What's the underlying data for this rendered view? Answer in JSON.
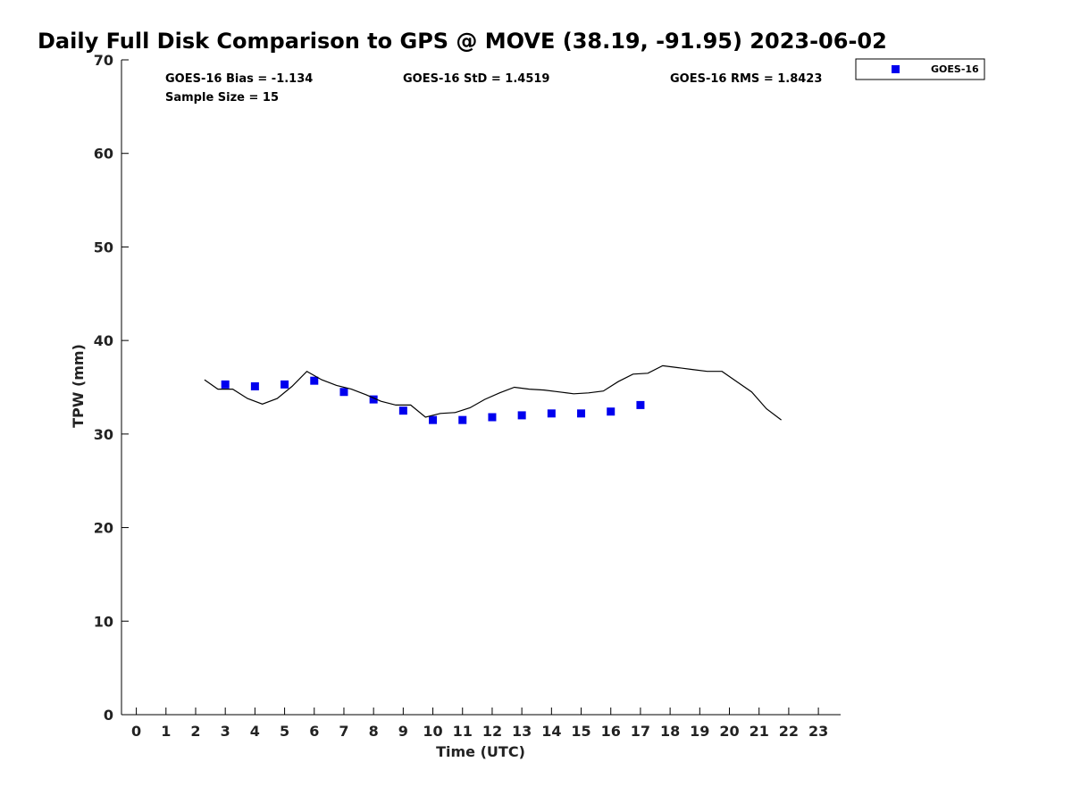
{
  "chart_data": {
    "type": "scatter",
    "title": "Daily Full Disk Comparison to GPS @ MOVE (38.19, -91.95) 2023-06-02",
    "xlabel": "Time (UTC)",
    "ylabel": "TPW (mm)",
    "xlim": [
      -0.5,
      23.75
    ],
    "ylim": [
      0,
      70
    ],
    "x_ticks": [
      "0",
      "1",
      "2",
      "3",
      "4",
      "5",
      "6",
      "7",
      "8",
      "9",
      "10",
      "11",
      "12",
      "13",
      "14",
      "15",
      "16",
      "17",
      "18",
      "19",
      "20",
      "21",
      "22",
      "23"
    ],
    "y_ticks": [
      "0",
      "10",
      "20",
      "30",
      "40",
      "50",
      "60",
      "70"
    ],
    "grid": false,
    "legend_position": "top-right",
    "stats": {
      "bias": "GOES-16 Bias = -1.134",
      "std": "GOES-16 StD = 1.4519",
      "rms": "GOES-16 RMS = 1.8423",
      "sample_size": "Sample Size = 15"
    },
    "series": [
      {
        "name": "GOES-16",
        "kind": "scatter",
        "color": "#0000ee",
        "marker": "square",
        "x": [
          3,
          4,
          5,
          6,
          7,
          8,
          9,
          10,
          11,
          12,
          13,
          14,
          15,
          16,
          17
        ],
        "y": [
          35.3,
          35.1,
          35.3,
          35.7,
          34.5,
          33.7,
          32.5,
          31.5,
          31.5,
          31.8,
          32.0,
          32.2,
          32.2,
          32.4,
          33.1
        ]
      },
      {
        "kind": "line",
        "color": "#000000",
        "x": [
          2.3,
          2.75,
          3.25,
          3.75,
          4.25,
          4.75,
          5.25,
          5.75,
          6.25,
          6.75,
          7.25,
          7.75,
          8.25,
          8.75,
          9.25,
          9.75,
          10.25,
          10.75,
          11.25,
          11.75,
          12.25,
          12.75,
          13.25,
          13.75,
          14.25,
          14.75,
          15.25,
          15.75,
          16.25,
          16.75,
          17.25,
          17.75,
          18.25,
          18.75,
          19.25,
          19.75,
          20.25,
          20.75,
          21.25,
          21.75
        ],
        "y": [
          35.8,
          34.8,
          34.8,
          33.8,
          33.2,
          33.8,
          35.1,
          36.7,
          35.8,
          35.2,
          34.8,
          34.2,
          33.5,
          33.1,
          33.1,
          31.8,
          32.2,
          32.3,
          32.8,
          33.7,
          34.4,
          35.0,
          34.8,
          34.7,
          34.5,
          34.3,
          34.4,
          34.6,
          35.6,
          36.4,
          36.5,
          37.3,
          37.1,
          36.9,
          36.7,
          36.7,
          35.6,
          34.5,
          32.7,
          31.5
        ]
      }
    ]
  }
}
